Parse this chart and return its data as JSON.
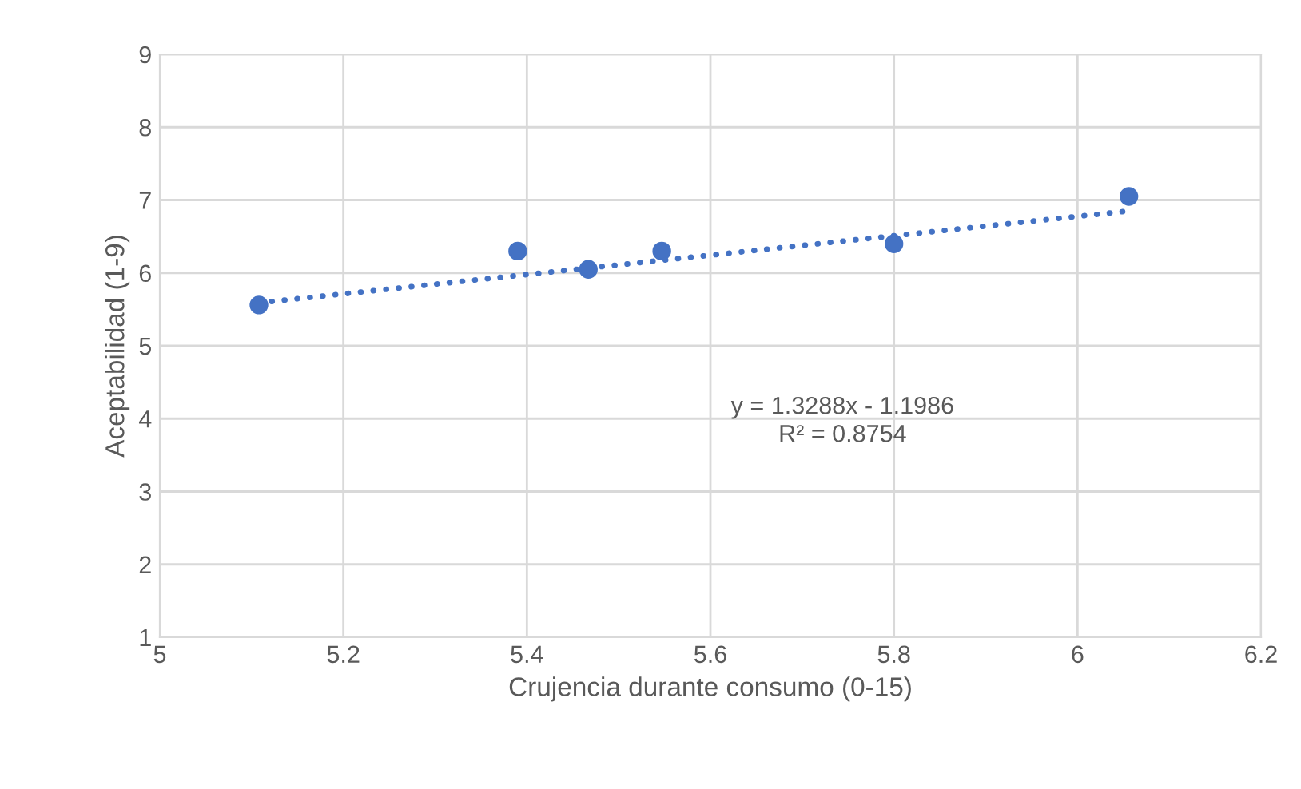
{
  "chart_data": {
    "type": "scatter",
    "xlabel": "Crujencia durante consumo (0-15)",
    "ylabel": "Aceptabilidad (1-9)",
    "series": [
      {
        "color": "#4472c4",
        "x": [
          5.108,
          5.39,
          5.467,
          5.547,
          5.8,
          6.056
        ],
        "values": [
          5.56,
          6.3,
          6.05,
          6.3,
          6.4,
          7.05
        ],
        "marker": "circle"
      },
      {
        "type": "line",
        "color": "#4472c4",
        "x": [
          5.108,
          6.056
        ],
        "values": [
          5.59,
          6.85
        ],
        "line_style": "dotted",
        "marker": "none"
      }
    ],
    "annotations": [
      "y = 1.3288x - 1.1986\nR² = 0.8754"
    ],
    "xlim": [
      5,
      6.2
    ],
    "xticks": [
      5,
      5.2,
      5.4,
      5.6,
      5.8,
      6,
      6.2
    ],
    "ylim": [
      1,
      9
    ],
    "yticks": [
      1,
      2,
      3,
      4,
      5,
      6,
      7,
      8,
      9
    ],
    "grid": true
  }
}
